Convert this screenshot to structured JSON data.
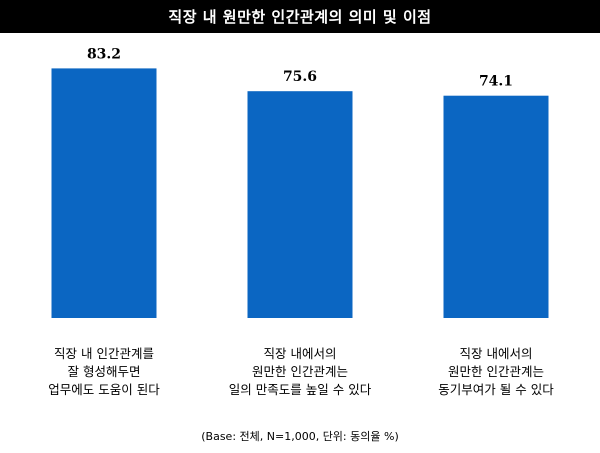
{
  "title": "직장 내 원만한 인간관계의 의미 및 이점",
  "footnote": "(Base: 전체, N=1,000, 단위: 동의율 %)",
  "colors": {
    "bar": "#0b66c2",
    "title_bg": "#000000",
    "title_text": "#ffffff"
  },
  "chart_data": {
    "type": "bar",
    "categories": [
      [
        "직장 내 인간관계를",
        "잘 형성해두면",
        "업무에도 도움이 된다"
      ],
      [
        "직장 내에서의",
        "원만한 인간관계는",
        "일의 만족도를 높일 수 있다"
      ],
      [
        "직장 내에서의",
        "원만한 인간관계는",
        "동기부여가 될 수 있다"
      ]
    ],
    "values": [
      83.2,
      75.6,
      74.1
    ],
    "value_labels": [
      "83.2",
      "75.6",
      "74.1"
    ],
    "title": "직장 내 원만한 인간관계의 의미 및 이점",
    "xlabel": "",
    "ylabel": "",
    "ylim": [
      0,
      100
    ],
    "grid": false
  }
}
